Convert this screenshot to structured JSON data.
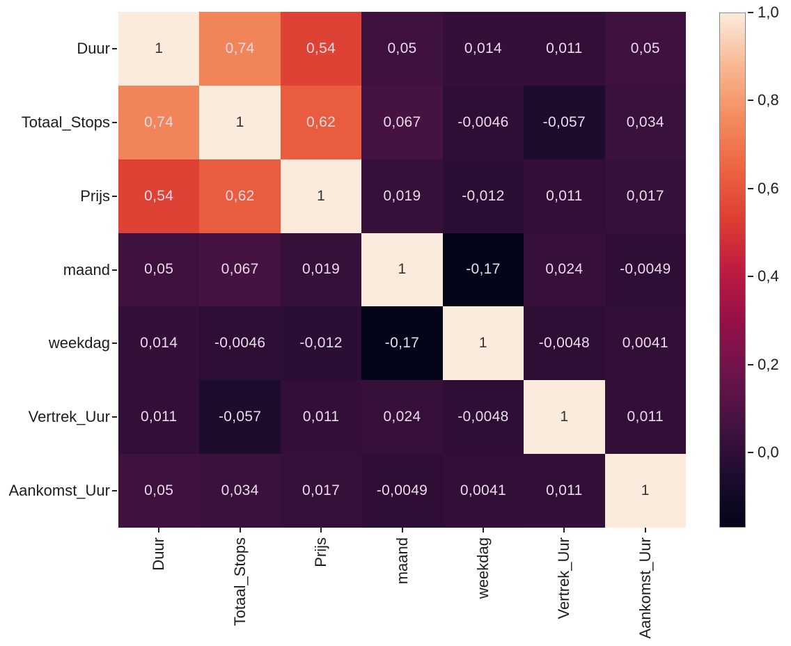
{
  "chart_data": {
    "type": "heatmap",
    "title": "",
    "labels": [
      "Duur",
      "Totaal_Stops",
      "Prijs",
      "maand",
      "weekdag",
      "Vertrek_Uur",
      "Aankomst_Uur"
    ],
    "matrix": [
      [
        1,
        0.74,
        0.54,
        0.05,
        0.014,
        0.011,
        0.05
      ],
      [
        0.74,
        1,
        0.62,
        0.067,
        -0.0046,
        -0.057,
        0.034
      ],
      [
        0.54,
        0.62,
        1,
        0.019,
        -0.012,
        0.011,
        0.017
      ],
      [
        0.05,
        0.067,
        0.019,
        1,
        -0.17,
        0.024,
        -0.0049
      ],
      [
        0.014,
        -0.0046,
        -0.012,
        -0.17,
        1,
        -0.0048,
        0.0041
      ],
      [
        0.011,
        -0.057,
        0.011,
        0.024,
        -0.0048,
        1,
        0.011
      ],
      [
        0.05,
        0.034,
        0.017,
        -0.0049,
        0.0041,
        0.011,
        1
      ]
    ],
    "decimal_separator": ",",
    "vmin": -0.17,
    "vmax": 1.0,
    "colormap": {
      "name": "rocket",
      "stops": [
        {
          "t": 0.0,
          "color": "#030519"
        },
        {
          "t": 0.1,
          "color": "#1E0C2D"
        },
        {
          "t": 0.2,
          "color": "#441241"
        },
        {
          "t": 0.3,
          "color": "#6C144A"
        },
        {
          "t": 0.4,
          "color": "#951049"
        },
        {
          "t": 0.5,
          "color": "#BE1B3F"
        },
        {
          "t": 0.6,
          "color": "#DD3F33"
        },
        {
          "t": 0.7,
          "color": "#ED6541"
        },
        {
          "t": 0.8,
          "color": "#F48D61"
        },
        {
          "t": 0.9,
          "color": "#F8B993"
        },
        {
          "t": 1.0,
          "color": "#FAEBDC"
        }
      ]
    },
    "annotation_text_light": "#E8DCE8",
    "annotation_text_dark": "#333333",
    "colorbar": {
      "position": "right",
      "tick_values": [
        1.0,
        0.8,
        0.6,
        0.4,
        0.2,
        0.0
      ],
      "tick_labels": [
        "1,0",
        "0,8",
        "0,6",
        "0,4",
        "0,2",
        "0,0"
      ]
    },
    "legend": "none",
    "grid": "off"
  }
}
